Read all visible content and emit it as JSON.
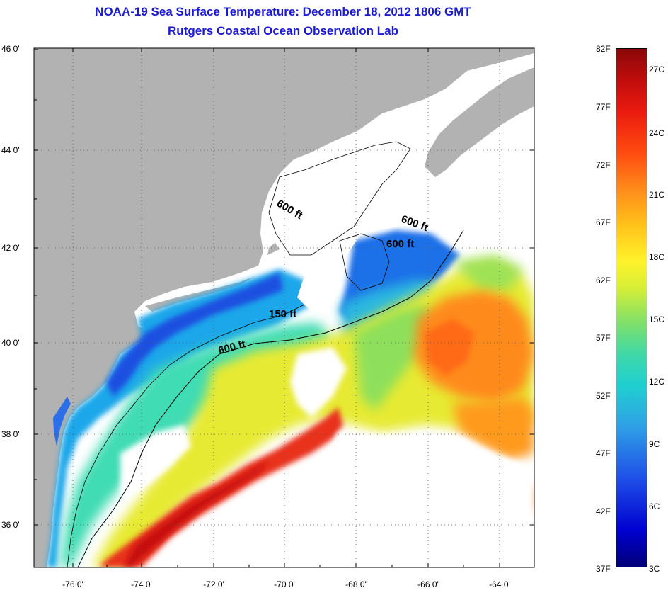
{
  "title": {
    "line1": "NOAA-19 Sea Surface Temperature:  December 18, 2012 1806 GMT",
    "line2": "Rutgers Coastal Ocean Observation Lab"
  },
  "latitude_labels": [
    "46 0'",
    "44 0'",
    "42 0'",
    "40 0'",
    "38 0'",
    "36 0'"
  ],
  "longitude_labels": [
    "-76 0'",
    "-74 0'",
    "-72 0'",
    "-70 0'",
    "-68 0'",
    "-66 0'",
    "-64 0'"
  ],
  "contour_labels": [
    "600 ft",
    "600 ft",
    "600 ft",
    "150 ft",
    "600 ft"
  ],
  "colorbar": {
    "fahrenheit": [
      "82F",
      "77F",
      "72F",
      "67F",
      "62F",
      "57F",
      "52F",
      "47F",
      "42F",
      "37F"
    ],
    "celsius": [
      "27C",
      "24C",
      "21C",
      "18C",
      "15C",
      "12C",
      "9C",
      "6C",
      "3C"
    ]
  },
  "colors": {
    "land": "#b2b2b2",
    "cloud": "#ffffff",
    "title": "#1a1ad0"
  }
}
